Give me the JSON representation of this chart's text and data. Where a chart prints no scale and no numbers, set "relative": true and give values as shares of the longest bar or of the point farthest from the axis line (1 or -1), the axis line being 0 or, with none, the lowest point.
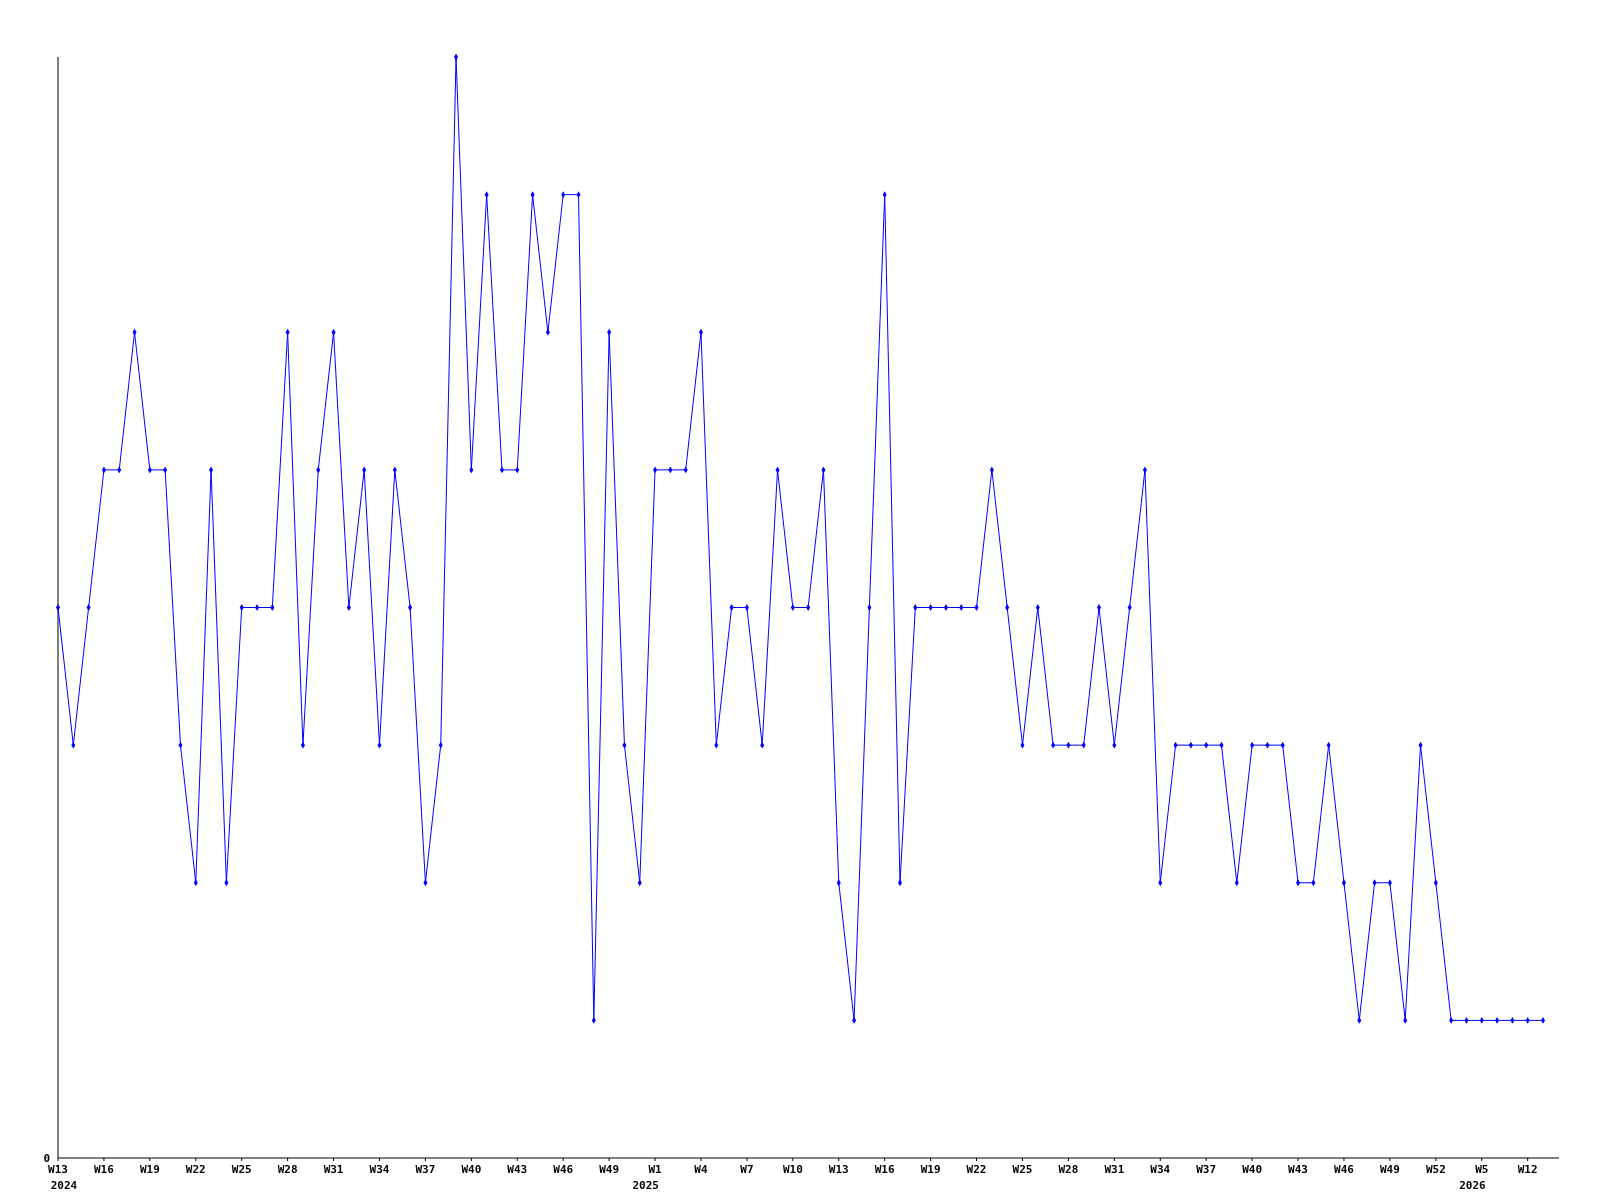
{
  "chart_data": {
    "type": "line",
    "relative": true,
    "marker": "diamond",
    "line_style": "solid",
    "categories": [
      "W13",
      null,
      null,
      "W16",
      null,
      null,
      "W19",
      null,
      null,
      "W22",
      null,
      null,
      "W25",
      null,
      null,
      "W28",
      null,
      null,
      "W31",
      null,
      null,
      "W34",
      null,
      null,
      "W37",
      null,
      null,
      "W40",
      null,
      null,
      "W43",
      null,
      null,
      "W46",
      null,
      null,
      "W49",
      null,
      null,
      "W1",
      null,
      null,
      "W4",
      null,
      null,
      "W7",
      null,
      null,
      "W10",
      null,
      null,
      "W13",
      null,
      null,
      "W16",
      null,
      null,
      "W19",
      null,
      null,
      "W22",
      null,
      null,
      "W25",
      null,
      null,
      "W28",
      null,
      null,
      "W31",
      null,
      null,
      "W34",
      null,
      null,
      "W37",
      null,
      null,
      "W40",
      null,
      null,
      "W43",
      null,
      null,
      "W46",
      null,
      null,
      "W49",
      null,
      null,
      "W52",
      null,
      null,
      "W5",
      null,
      null,
      "W12",
      null
    ],
    "series": [
      {
        "color": "#0000ff",
        "values": [
          0.5,
          0.375,
          0.5,
          0.625,
          0.625,
          0.75,
          0.625,
          0.625,
          0.375,
          0.25,
          0.625,
          0.25,
          0.5,
          0.5,
          0.5,
          0.75,
          0.375,
          0.625,
          0.75,
          0.5,
          0.625,
          0.375,
          0.625,
          0.5,
          0.25,
          0.375,
          1,
          0.625,
          0.875,
          0.625,
          0.625,
          0.875,
          0.75,
          0.875,
          0.875,
          0.125,
          0.75,
          0.375,
          0.25,
          0.625,
          0.625,
          0.625,
          0.75,
          0.375,
          0.5,
          0.5,
          0.375,
          0.625,
          0.5,
          0.5,
          0.625,
          0.25,
          0.125,
          0.5,
          0.875,
          0.25,
          0.5,
          0.5,
          0.5,
          0.5,
          0.5,
          0.625,
          0.5,
          0.375,
          0.5,
          0.375,
          0.375,
          0.375,
          0.5,
          0.375,
          0.5,
          0.625,
          0.25,
          0.375,
          0.375,
          0.375,
          0.375,
          0.25,
          0.375,
          0.375,
          0.375,
          0.25,
          0.25,
          0.375,
          0.25,
          0.125,
          0.25,
          0.25,
          0.125,
          0.375,
          0.25,
          0.125,
          0.125,
          0.125,
          0.125,
          0.125,
          0.125,
          0.125
        ]
      }
    ],
    "annotations": [
      "0",
      "2024",
      "2025",
      "2026"
    ]
  }
}
